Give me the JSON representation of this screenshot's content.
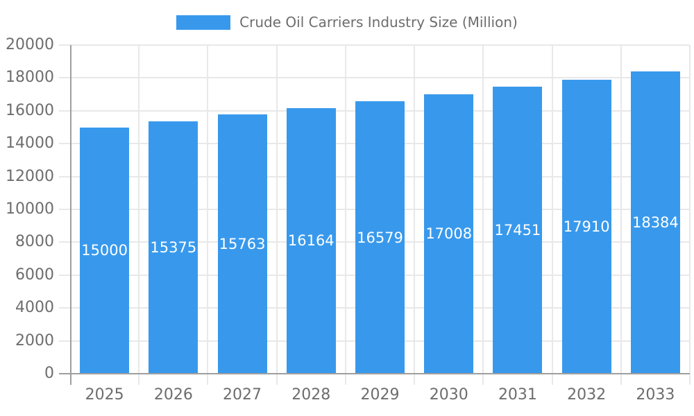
{
  "chart_data": {
    "type": "bar",
    "title": "Crude Oil Carriers Industry Size (Million)",
    "legend": {
      "label": "Crude Oil Carriers Industry Size (Million)",
      "position": "top"
    },
    "categories": [
      "2025",
      "2026",
      "2027",
      "2028",
      "2029",
      "2030",
      "2031",
      "2032",
      "2033"
    ],
    "values": [
      15000,
      15375,
      15763,
      16164,
      16579,
      17008,
      17451,
      17910,
      18384
    ],
    "bar_value_labels": [
      "15000",
      "15375",
      "15763",
      "16164",
      "16579",
      "17008",
      "17451",
      "17910",
      "18384"
    ],
    "xlabel": "",
    "ylabel": "",
    "ylim": [
      0,
      20000
    ],
    "yticks": [
      0,
      2000,
      4000,
      6000,
      8000,
      10000,
      12000,
      14000,
      16000,
      18000,
      20000
    ],
    "grid": true,
    "legend_position": "top",
    "colors": {
      "bar": "#3899EC",
      "bar_label_text": "#FFFFFF",
      "axis_text": "#6D6D6D",
      "legend_text": "#6D6D6D",
      "gridline": "#E8E8E8",
      "axis_line": "#9E9E9E",
      "background": "#FFFFFF"
    }
  }
}
